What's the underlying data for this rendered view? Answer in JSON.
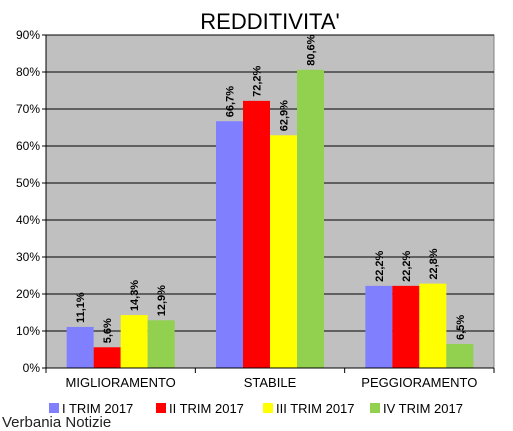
{
  "chart_data": {
    "type": "bar",
    "title": "REDDITIVITA'",
    "categories": [
      "MIGLIORAMENTO",
      "STABILE",
      "PEGGIORAMENTO"
    ],
    "series": [
      {
        "name": "I TRIM 2017",
        "color": "#8080ff",
        "values": [
          11.1,
          66.7,
          22.2
        ],
        "labels": [
          "11,1%",
          "66,7%",
          "22,2%"
        ]
      },
      {
        "name": "II TRIM 2017",
        "color": "#ff0000",
        "values": [
          5.6,
          72.2,
          22.2
        ],
        "labels": [
          "5,6%",
          "72,2%",
          "22,2%"
        ]
      },
      {
        "name": "III TRIM 2017",
        "color": "#ffff00",
        "values": [
          14.3,
          62.9,
          22.8
        ],
        "labels": [
          "14,3%",
          "62,9%",
          "22,8%"
        ]
      },
      {
        "name": "IV TRIM 2017",
        "color": "#92d050",
        "values": [
          12.9,
          80.6,
          6.5
        ],
        "labels": [
          "12,9%",
          "80,6%",
          "6,5%"
        ]
      }
    ],
    "ylim": [
      0,
      90
    ],
    "yticks": [
      "0%",
      "10%",
      "20%",
      "30%",
      "40%",
      "50%",
      "60%",
      "70%",
      "80%",
      "90%"
    ],
    "grid": true,
    "plot_background": "#c0c0c0",
    "legend": "bottom"
  },
  "footer": {
    "source": "Verbania Notizie"
  }
}
